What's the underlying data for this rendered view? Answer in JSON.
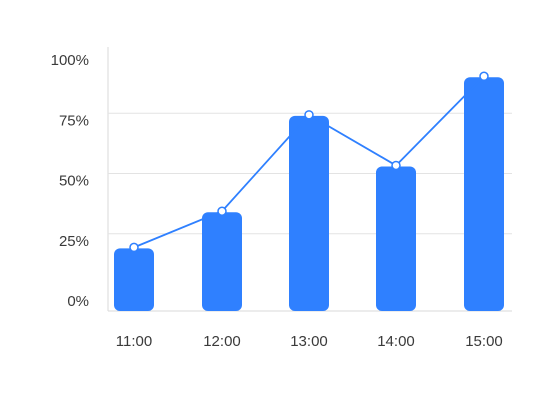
{
  "chart_data": {
    "type": "bar",
    "categories": [
      "11:00",
      "12:00",
      "13:00",
      "14:00",
      "15:00"
    ],
    "values": [
      21,
      36,
      76,
      55,
      92
    ],
    "line_values": [
      21,
      36,
      76,
      55,
      92
    ],
    "ylim": [
      0,
      100
    ],
    "yticks": [
      "0%",
      "25%",
      "50%",
      "75%",
      "100%"
    ],
    "ytick_values": [
      0,
      25,
      50,
      75,
      100
    ],
    "grid": true,
    "colors": {
      "bar": "#2F80FF",
      "line": "#2F80FF",
      "grid": "#E3E3E3",
      "axis": "#DADADA",
      "point_fill": "#FFFFFF"
    }
  }
}
